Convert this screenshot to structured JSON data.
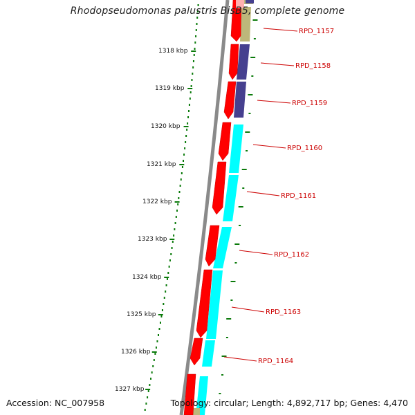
{
  "title": "Rhodopseudomonas palustris BisB5, complete genome",
  "accession": "Accession: NC_007958",
  "summary": "Topology: circular; Length: 4,892,717 bp; Genes: 4,470",
  "colors": {
    "backbone": "#888888",
    "ruler_dots": "#0a7a0a",
    "strand_forward": "#ff0000",
    "gene_label": "#cc0000",
    "cyan": "#00ffff",
    "indigo": "#46408f",
    "khaki": "#bdb77a"
  },
  "ruler_ticks": [
    "1318 kbp",
    "1319 kbp",
    "1320 kbp",
    "1321 kbp",
    "1322 kbp",
    "1323 kbp",
    "1324 kbp",
    "1325 kbp",
    "1326 kbp",
    "1327 kbp"
  ],
  "gene_labels": [
    "RPD_1157",
    "RPD_1158",
    "RPD_1159",
    "RPD_1160",
    "RPD_1161",
    "RPD_1162",
    "RPD_1163",
    "RPD_1164"
  ]
}
